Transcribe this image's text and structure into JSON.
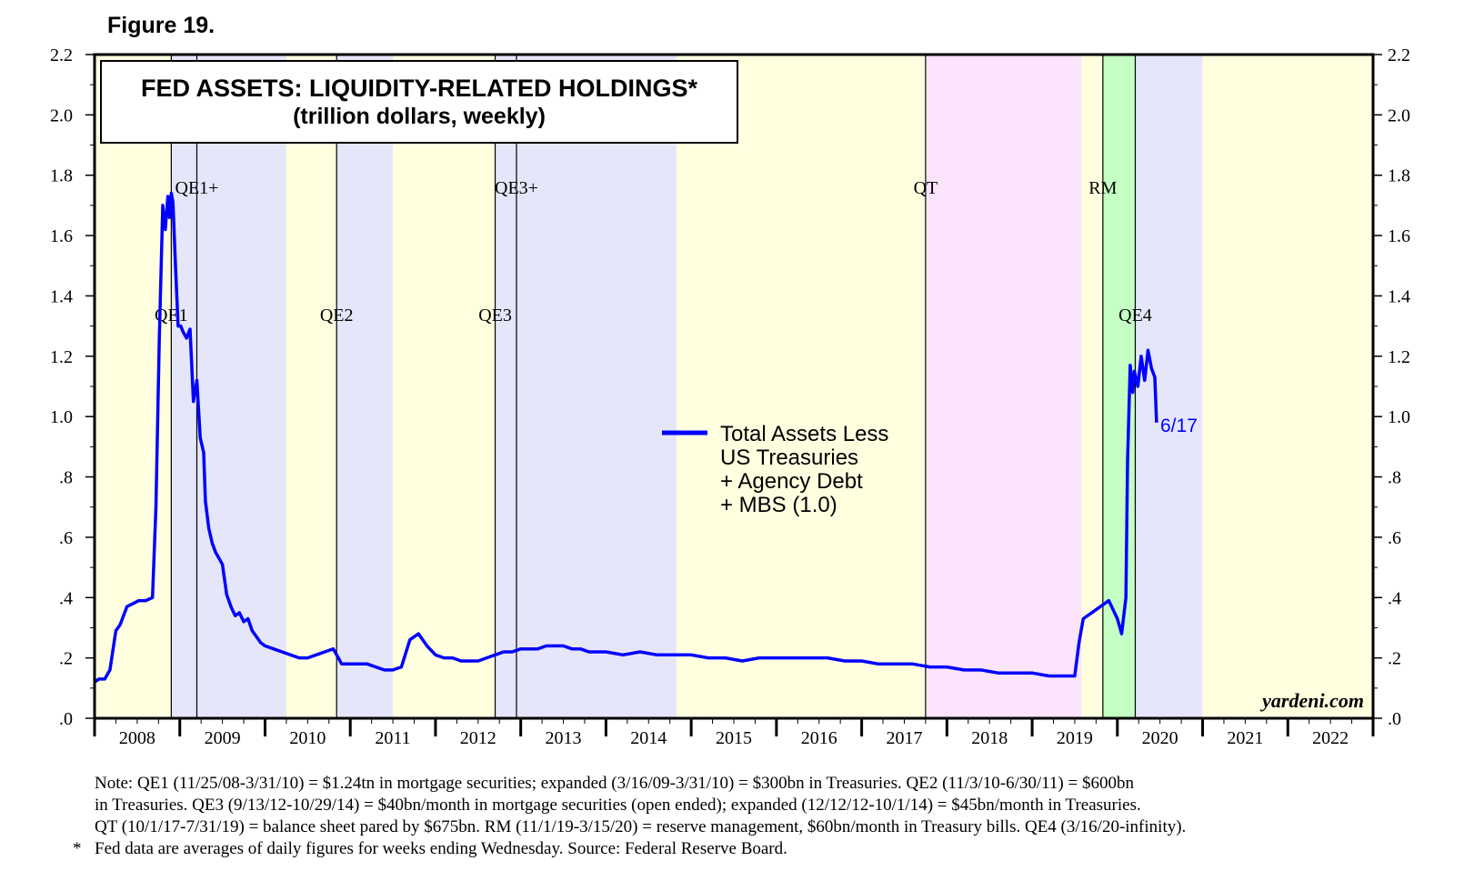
{
  "figure_label": "Figure 19.",
  "chart_data": {
    "type": "line",
    "title": "FED ASSETS: LIQUIDITY-RELATED HOLDINGS*",
    "subtitle": "(trillion dollars, weekly)",
    "ylim": [
      0,
      2.2
    ],
    "y_ticks": [
      ".0",
      ".2",
      ".4",
      ".6",
      ".8",
      "1.0",
      "1.2",
      "1.4",
      "1.6",
      "1.8",
      "2.0",
      "2.2"
    ],
    "x_range": [
      2008.0,
      2023.0
    ],
    "x_ticks": [
      "2008",
      "2009",
      "2010",
      "2011",
      "2012",
      "2013",
      "2014",
      "2015",
      "2016",
      "2017",
      "2018",
      "2019",
      "2020",
      "2021",
      "2022"
    ],
    "legend": "center",
    "series": [
      {
        "name": "Total Assets Less US Treasuries + Agency Debt + MBS (1.0)",
        "legend_lines": [
          "Total Assets Less",
          "US Treasuries",
          "+ Agency Debt",
          "+ MBS (1.0)"
        ],
        "color": "#0000ff",
        "x": [
          2008.0,
          2008.05,
          2008.12,
          2008.18,
          2008.25,
          2008.3,
          2008.38,
          2008.45,
          2008.52,
          2008.6,
          2008.68,
          2008.72,
          2008.76,
          2008.8,
          2008.83,
          2008.86,
          2008.88,
          2008.9,
          2008.92,
          2008.95,
          2008.98,
          2009.01,
          2009.04,
          2009.08,
          2009.12,
          2009.16,
          2009.2,
          2009.24,
          2009.28,
          2009.3,
          2009.34,
          2009.38,
          2009.42,
          2009.46,
          2009.5,
          2009.55,
          2009.6,
          2009.65,
          2009.7,
          2009.75,
          2009.8,
          2009.85,
          2009.9,
          2009.95,
          2010.0,
          2010.1,
          2010.2,
          2010.3,
          2010.4,
          2010.5,
          2010.6,
          2010.7,
          2010.8,
          2010.9,
          2011.0,
          2011.1,
          2011.2,
          2011.3,
          2011.4,
          2011.5,
          2011.6,
          2011.7,
          2011.8,
          2011.9,
          2012.0,
          2012.1,
          2012.2,
          2012.3,
          2012.4,
          2012.5,
          2012.6,
          2012.7,
          2012.8,
          2012.9,
          2013.0,
          2013.1,
          2013.2,
          2013.3,
          2013.4,
          2013.5,
          2013.6,
          2013.7,
          2013.8,
          2013.9,
          2014.0,
          2014.2,
          2014.4,
          2014.6,
          2014.8,
          2015.0,
          2015.2,
          2015.4,
          2015.6,
          2015.8,
          2016.0,
          2016.2,
          2016.4,
          2016.6,
          2016.8,
          2017.0,
          2017.2,
          2017.4,
          2017.6,
          2017.8,
          2018.0,
          2018.2,
          2018.4,
          2018.6,
          2018.8,
          2019.0,
          2019.2,
          2019.35,
          2019.5,
          2019.55,
          2019.6,
          2019.7,
          2019.8,
          2019.9,
          2020.0,
          2020.05,
          2020.1,
          2020.12,
          2020.15,
          2020.18,
          2020.2,
          2020.24,
          2020.28,
          2020.32,
          2020.36,
          2020.4,
          2020.44,
          2020.46
        ],
        "values": [
          0.12,
          0.13,
          0.13,
          0.16,
          0.29,
          0.31,
          0.37,
          0.38,
          0.39,
          0.39,
          0.4,
          0.7,
          1.26,
          1.7,
          1.62,
          1.73,
          1.66,
          1.74,
          1.71,
          1.5,
          1.3,
          1.3,
          1.28,
          1.26,
          1.29,
          1.05,
          1.12,
          0.93,
          0.88,
          0.72,
          0.63,
          0.58,
          0.55,
          0.53,
          0.51,
          0.41,
          0.37,
          0.34,
          0.35,
          0.32,
          0.33,
          0.29,
          0.27,
          0.25,
          0.24,
          0.23,
          0.22,
          0.21,
          0.2,
          0.2,
          0.21,
          0.22,
          0.23,
          0.18,
          0.18,
          0.18,
          0.18,
          0.17,
          0.16,
          0.16,
          0.17,
          0.26,
          0.28,
          0.24,
          0.21,
          0.2,
          0.2,
          0.19,
          0.19,
          0.19,
          0.2,
          0.21,
          0.22,
          0.22,
          0.23,
          0.23,
          0.23,
          0.24,
          0.24,
          0.24,
          0.23,
          0.23,
          0.22,
          0.22,
          0.22,
          0.21,
          0.22,
          0.21,
          0.21,
          0.21,
          0.2,
          0.2,
          0.19,
          0.2,
          0.2,
          0.2,
          0.2,
          0.2,
          0.19,
          0.19,
          0.18,
          0.18,
          0.18,
          0.17,
          0.17,
          0.16,
          0.16,
          0.15,
          0.15,
          0.15,
          0.14,
          0.14,
          0.14,
          0.25,
          0.33,
          0.35,
          0.37,
          0.39,
          0.33,
          0.28,
          0.4,
          0.85,
          1.17,
          1.08,
          1.15,
          1.1,
          1.2,
          1.12,
          1.22,
          1.16,
          1.13,
          0.98
        ]
      }
    ],
    "end_label": "6/17",
    "shaded_periods": [
      {
        "start": 2008.0,
        "end": 2008.9,
        "color": "#ffffe0"
      },
      {
        "start": 2008.9,
        "end": 2010.25,
        "color": "#e6e6fa"
      },
      {
        "start": 2010.25,
        "end": 2010.84,
        "color": "#ffffe0"
      },
      {
        "start": 2010.84,
        "end": 2011.5,
        "color": "#e6e6fa"
      },
      {
        "start": 2011.5,
        "end": 2012.7,
        "color": "#ffffe0"
      },
      {
        "start": 2012.7,
        "end": 2014.83,
        "color": "#e6e6fa"
      },
      {
        "start": 2014.83,
        "end": 2017.75,
        "color": "#ffffe0"
      },
      {
        "start": 2017.75,
        "end": 2019.58,
        "color": "#fce4fc"
      },
      {
        "start": 2019.58,
        "end": 2019.83,
        "color": "#ffffe0"
      },
      {
        "start": 2019.83,
        "end": 2020.21,
        "color": "#c4ffc4"
      },
      {
        "start": 2020.21,
        "end": 2021.0,
        "color": "#e6e6fa"
      },
      {
        "start": 2021.0,
        "end": 2023.0,
        "color": "#ffffe0"
      }
    ],
    "event_lines": [
      {
        "x": 2008.9,
        "label": "QE1",
        "level": "lower"
      },
      {
        "x": 2009.2,
        "label": "QE1+",
        "level": "upper"
      },
      {
        "x": 2010.84,
        "label": "QE2",
        "level": "lower"
      },
      {
        "x": 2012.7,
        "label": "QE3",
        "level": "lower"
      },
      {
        "x": 2012.95,
        "label": "QE3+",
        "level": "upper"
      },
      {
        "x": 2017.75,
        "label": "QT",
        "level": "upper"
      },
      {
        "x": 2019.83,
        "label": "RM",
        "level": "upper"
      },
      {
        "x": 2020.21,
        "label": "QE4",
        "level": "lower"
      }
    ],
    "watermark": "yardeni.com"
  },
  "notes": [
    "Note: QE1 (11/25/08-3/31/10) = $1.24tn in mortgage securities; expanded (3/16/09-3/31/10) = $300bn in Treasuries. QE2 (11/3/10-6/30/11) = $600bn",
    "in Treasuries. QE3 (9/13/12-10/29/14) = $40bn/month in mortgage securities (open ended); expanded (12/12/12-10/1/14) = $45bn/month in Treasuries.",
    "QT (10/1/17-7/31/19) = balance sheet pared by $675bn. RM (11/1/19-3/15/20) = reserve management, $60bn/month in Treasury bills. QE4 (3/16/20-infinity)."
  ],
  "footnote_marker": "*",
  "footnote": "Fed data are averages of daily figures for weeks ending Wednesday. Source: Federal Reserve Board."
}
